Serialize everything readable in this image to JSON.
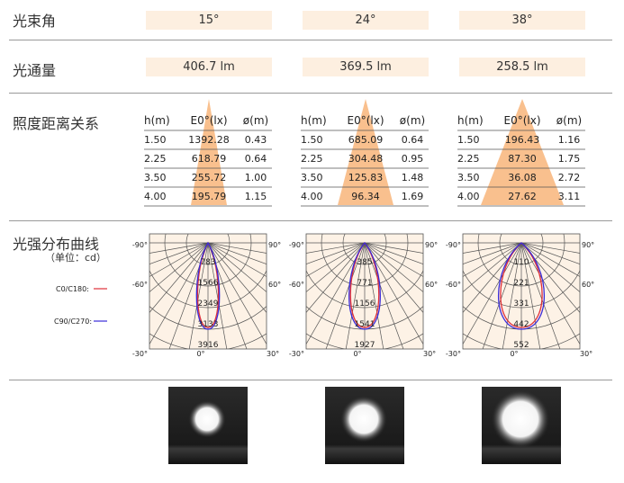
{
  "rows": {
    "beam_angle": {
      "label": "光束角",
      "values": [
        "15°",
        "24°",
        "38°"
      ]
    },
    "luminous_flux": {
      "label": "光通量",
      "values": [
        "406.7 lm",
        "369.5 lm",
        "258.5 lm"
      ]
    },
    "illuminance": {
      "label": "照度距离关系",
      "header": [
        "h(m)",
        "E0°(lx)",
        "ø(m)"
      ],
      "tables": [
        [
          [
            "1.50",
            "1392.28",
            "0.43"
          ],
          [
            "2.25",
            "618.79",
            "0.64"
          ],
          [
            "3.50",
            "255.72",
            "1.00"
          ],
          [
            "4.00",
            "195.79",
            "1.15"
          ]
        ],
        [
          [
            "1.50",
            "685.09",
            "0.64"
          ],
          [
            "2.25",
            "304.48",
            "0.95"
          ],
          [
            "3.50",
            "125.83",
            "1.48"
          ],
          [
            "4.00",
            "96.34",
            "1.69"
          ]
        ],
        [
          [
            "1.50",
            "196.43",
            "1.16"
          ],
          [
            "2.25",
            "87.30",
            "1.75"
          ],
          [
            "3.50",
            "36.08",
            "2.72"
          ],
          [
            "4.00",
            "27.62",
            "3.11"
          ]
        ]
      ]
    },
    "intensity": {
      "label": "光强分布曲线",
      "unit": "（单位：cd）",
      "legend": [
        "C0/C180:",
        "C90/C270:"
      ],
      "angles": [
        "-90°",
        "90°",
        "-60°",
        "60°",
        "-30°",
        "0°",
        "30°"
      ],
      "rings": [
        [
          "783",
          "1566",
          "2349",
          "3133",
          "3916"
        ],
        [
          "385",
          "771",
          "1156",
          "1541",
          "1927"
        ],
        [
          "110",
          "221",
          "331",
          "442",
          "552"
        ]
      ]
    }
  }
}
